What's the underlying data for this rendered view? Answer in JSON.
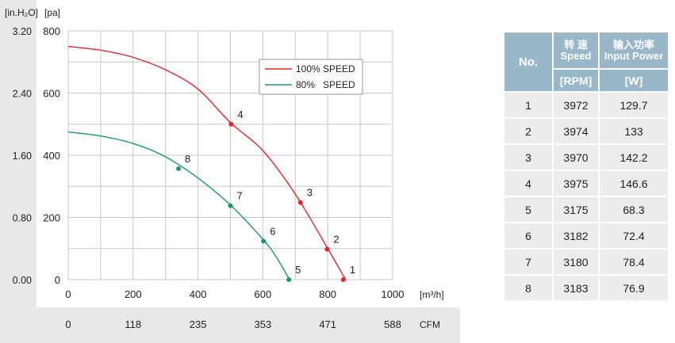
{
  "chart_data": {
    "type": "line",
    "units": {
      "pressure_in": "[in.H₂O]",
      "pressure_pa": "[pa]",
      "flow_m3h": "[m³/h]",
      "flow_cfm": "CFM"
    },
    "x_ticks_m3h": [
      "0",
      "200",
      "400",
      "600",
      "800",
      "1000"
    ],
    "x_ticks_cfm": [
      "0",
      "118",
      "235",
      "353",
      "471",
      "588"
    ],
    "y_ticks_pa": [
      "0",
      "200",
      "400",
      "600",
      "800"
    ],
    "y_ticks_inh2o": [
      "0.00",
      "0.80",
      "1.60",
      "2.40",
      "3.20"
    ],
    "xlim": [
      0,
      1000
    ],
    "ylim": [
      0,
      800
    ],
    "grid": true,
    "legend_position": "top-right",
    "series": [
      {
        "name": "100% SPEED",
        "color": "#e8232b",
        "curve": [
          [
            0,
            750
          ],
          [
            100,
            738
          ],
          [
            200,
            715
          ],
          [
            300,
            675
          ],
          [
            400,
            613
          ],
          [
            500,
            505
          ],
          [
            600,
            415
          ],
          [
            700,
            275
          ],
          [
            800,
            100
          ],
          [
            855,
            0
          ]
        ],
        "points": [
          {
            "label": "1",
            "x": 848,
            "y": 0
          },
          {
            "label": "2",
            "x": 798,
            "y": 98
          },
          {
            "label": "3",
            "x": 716,
            "y": 248
          },
          {
            "label": "4",
            "x": 502,
            "y": 500
          }
        ]
      },
      {
        "name": "80%   SPEED",
        "color": "#1a9b5c",
        "curve": [
          [
            0,
            475
          ],
          [
            100,
            462
          ],
          [
            200,
            438
          ],
          [
            300,
            395
          ],
          [
            400,
            327
          ],
          [
            500,
            240
          ],
          [
            600,
            130
          ],
          [
            640,
            75
          ],
          [
            682,
            0
          ]
        ],
        "points": [
          {
            "label": "5",
            "x": 680,
            "y": 0
          },
          {
            "label": "6",
            "x": 602,
            "y": 124
          },
          {
            "label": "7",
            "x": 500,
            "y": 238
          },
          {
            "label": "8",
            "x": 340,
            "y": 357
          }
        ]
      }
    ]
  },
  "table": {
    "header_no": "No.",
    "header_speed_cn": "转 速",
    "header_speed_en": "Speed",
    "header_power_cn": "输入功率",
    "header_power_en": "Input Power",
    "unit_speed": "[RPM]",
    "unit_power": "[W]",
    "rows": [
      {
        "no": "1",
        "speed": "3972",
        "power": "129.7"
      },
      {
        "no": "2",
        "speed": "3974",
        "power": "133"
      },
      {
        "no": "3",
        "speed": "3970",
        "power": "142.2"
      },
      {
        "no": "4",
        "speed": "3975",
        "power": "146.6"
      },
      {
        "no": "5",
        "speed": "3175",
        "power": "68.3"
      },
      {
        "no": "6",
        "speed": "3182",
        "power": "72.4"
      },
      {
        "no": "7",
        "speed": "3180",
        "power": "78.4"
      },
      {
        "no": "8",
        "speed": "3183",
        "power": "76.9"
      }
    ]
  }
}
